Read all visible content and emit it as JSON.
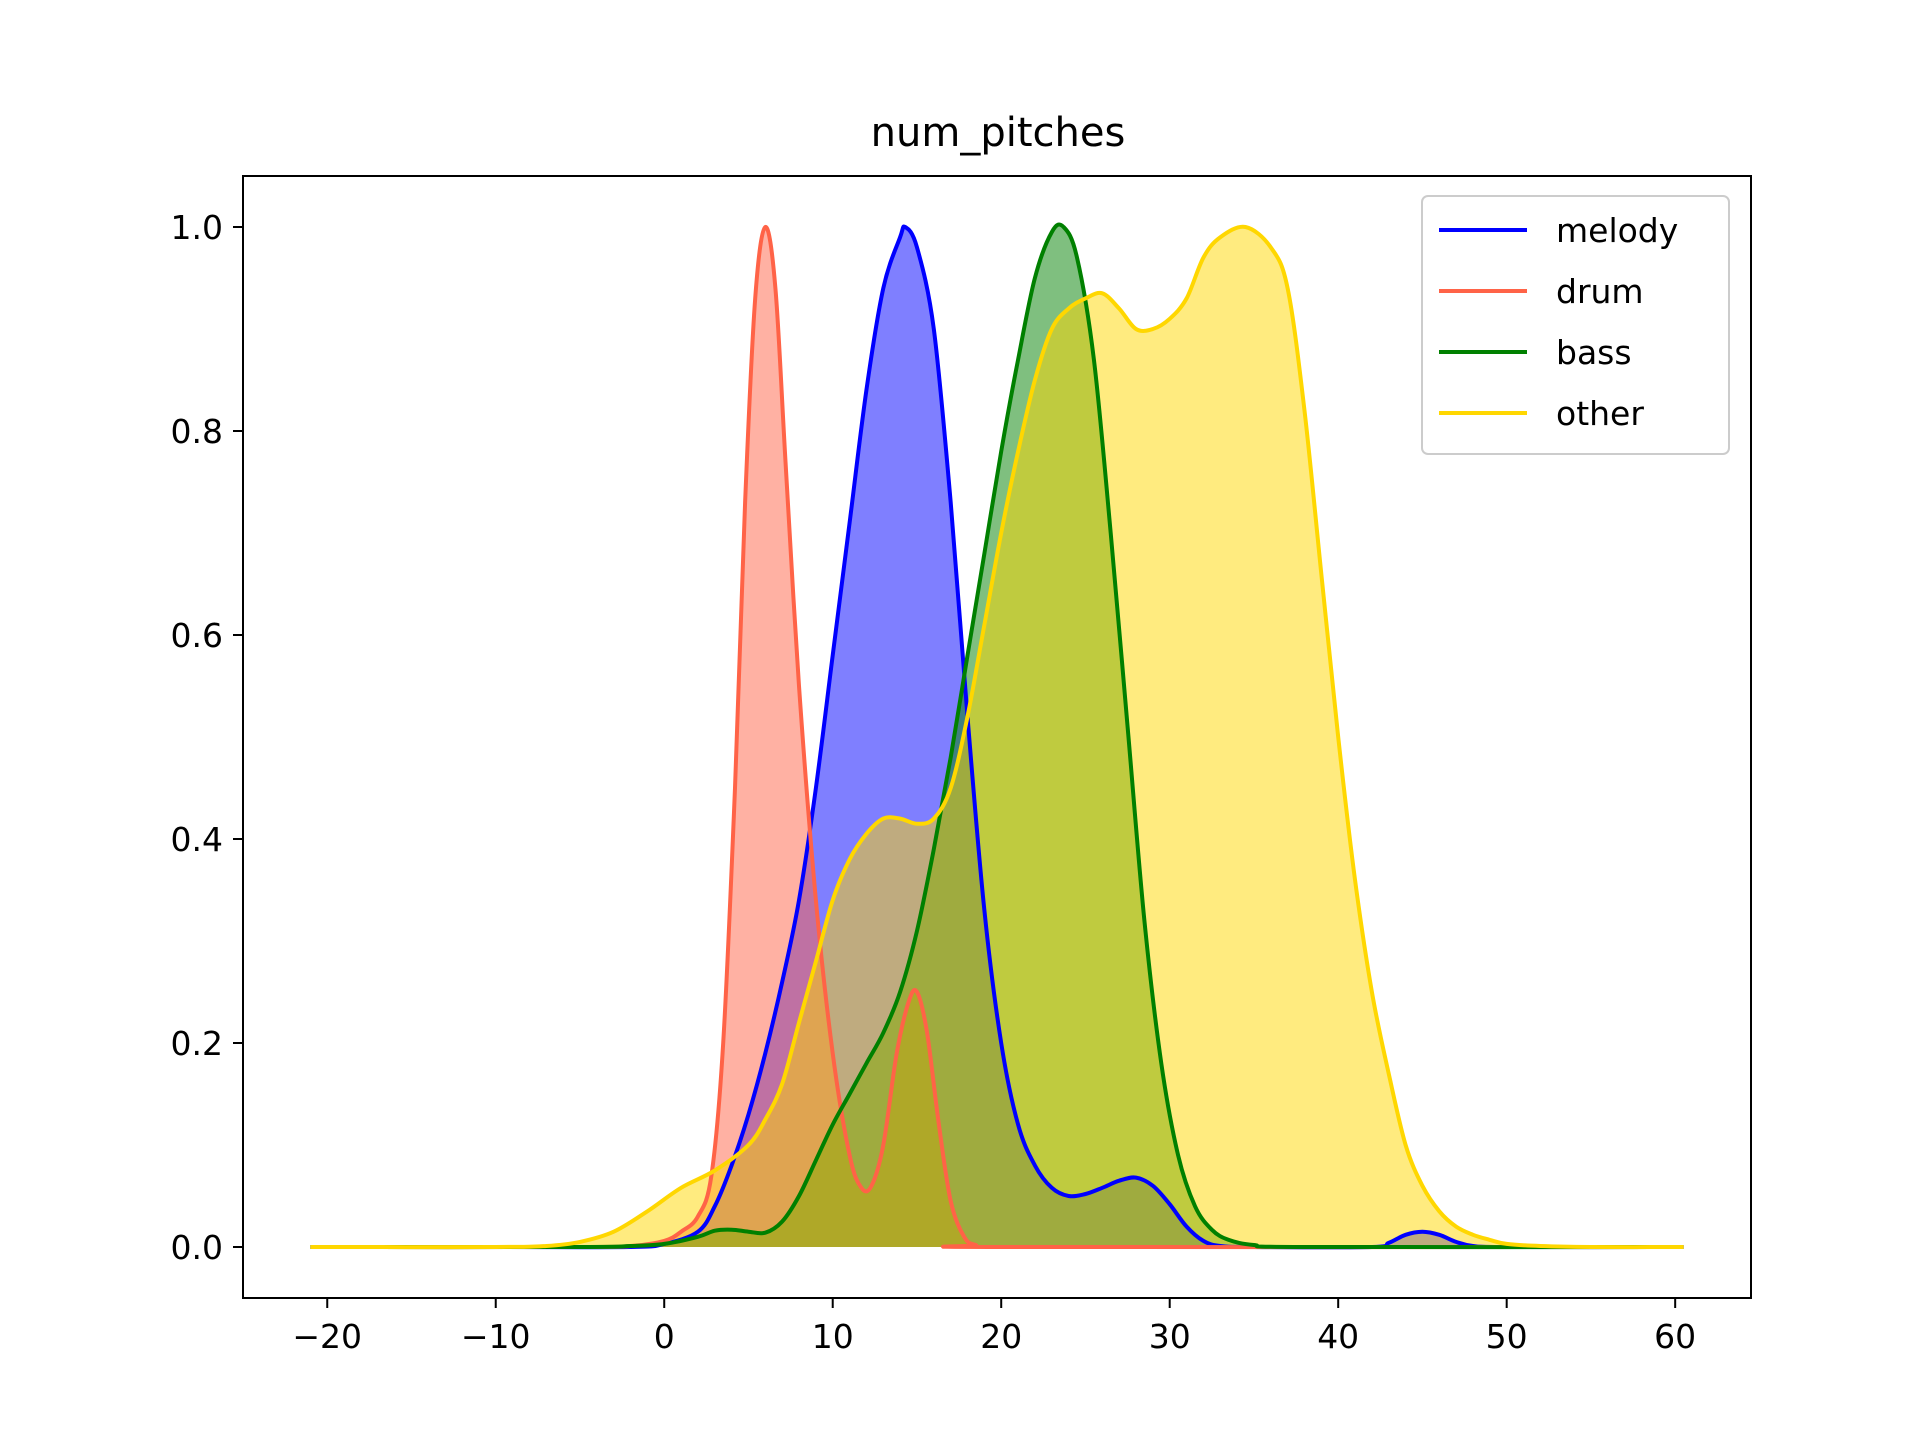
{
  "chart_data": {
    "type": "area",
    "title": "num_pitches",
    "xlabel": "",
    "ylabel": "",
    "xlim": [
      -25,
      64.5
    ],
    "ylim": [
      -0.05,
      1.05
    ],
    "xticks": [
      -20,
      -10,
      0,
      10,
      20,
      30,
      40,
      50,
      60
    ],
    "xtick_labels": [
      "−20",
      "−10",
      "0",
      "10",
      "20",
      "30",
      "40",
      "50",
      "60"
    ],
    "yticks": [
      0.0,
      0.2,
      0.4,
      0.6,
      0.8,
      1.0
    ],
    "ytick_labels": [
      "0.0",
      "0.2",
      "0.4",
      "0.6",
      "0.8",
      "1.0"
    ],
    "grid": false,
    "legend_position": "top-right",
    "series": [
      {
        "name": "melody",
        "color": "#0000ff",
        "fill_opacity": 0.5,
        "points": [
          [
            -21,
            0
          ],
          [
            -10,
            0
          ],
          [
            -2,
            0
          ],
          [
            0,
            0.003
          ],
          [
            2,
            0.015
          ],
          [
            3,
            0.04
          ],
          [
            4,
            0.08
          ],
          [
            5,
            0.13
          ],
          [
            6,
            0.19
          ],
          [
            7,
            0.26
          ],
          [
            8,
            0.34
          ],
          [
            9,
            0.45
          ],
          [
            10,
            0.58
          ],
          [
            11,
            0.71
          ],
          [
            12,
            0.84
          ],
          [
            13,
            0.94
          ],
          [
            14,
            0.99
          ],
          [
            14.3,
            1.0
          ],
          [
            15,
            0.98
          ],
          [
            16,
            0.9
          ],
          [
            17,
            0.73
          ],
          [
            18,
            0.52
          ],
          [
            19,
            0.33
          ],
          [
            20,
            0.2
          ],
          [
            21,
            0.12
          ],
          [
            22,
            0.08
          ],
          [
            23,
            0.058
          ],
          [
            24,
            0.05
          ],
          [
            25,
            0.052
          ],
          [
            26,
            0.058
          ],
          [
            27,
            0.065
          ],
          [
            28,
            0.068
          ],
          [
            29,
            0.06
          ],
          [
            30,
            0.042
          ],
          [
            31,
            0.02
          ],
          [
            32,
            0.006
          ],
          [
            33,
            0.001
          ],
          [
            35,
            0
          ],
          [
            42,
            0
          ],
          [
            43,
            0.004
          ],
          [
            44,
            0.012
          ],
          [
            45,
            0.015
          ],
          [
            46,
            0.012
          ],
          [
            47,
            0.005
          ],
          [
            48,
            0.001
          ],
          [
            50,
            0
          ],
          [
            60.5,
            0
          ]
        ]
      },
      {
        "name": "drum",
        "color": "#ff6347",
        "fill_opacity": 0.5,
        "points": [
          [
            -21,
            0
          ],
          [
            -5,
            0
          ],
          [
            -2,
            0.001
          ],
          [
            0,
            0.006
          ],
          [
            1,
            0.015
          ],
          [
            2,
            0.03
          ],
          [
            2.8,
            0.07
          ],
          [
            3.5,
            0.2
          ],
          [
            4.2,
            0.45
          ],
          [
            4.8,
            0.73
          ],
          [
            5.4,
            0.93
          ],
          [
            6.0,
            1.0
          ],
          [
            6.6,
            0.94
          ],
          [
            7.2,
            0.77
          ],
          [
            8,
            0.55
          ],
          [
            9,
            0.34
          ],
          [
            10,
            0.19
          ],
          [
            11,
            0.09
          ],
          [
            11.7,
            0.058
          ],
          [
            12.3,
            0.06
          ],
          [
            13,
            0.1
          ],
          [
            13.8,
            0.19
          ],
          [
            14.5,
            0.24
          ],
          [
            15,
            0.25
          ],
          [
            15.6,
            0.21
          ],
          [
            16.3,
            0.12
          ],
          [
            17,
            0.045
          ],
          [
            17.8,
            0.01
          ],
          [
            18.5,
            0.002
          ],
          [
            20,
            0
          ],
          [
            60.5,
            0
          ]
        ]
      },
      {
        "name": "bass",
        "color": "#008000",
        "fill_opacity": 0.5,
        "points": [
          [
            -21,
            0
          ],
          [
            -5,
            0
          ],
          [
            -2,
            0.001
          ],
          [
            0,
            0.003
          ],
          [
            2,
            0.01
          ],
          [
            3,
            0.016
          ],
          [
            4,
            0.017
          ],
          [
            5,
            0.015
          ],
          [
            6,
            0.014
          ],
          [
            7,
            0.025
          ],
          [
            8,
            0.05
          ],
          [
            9,
            0.085
          ],
          [
            10,
            0.12
          ],
          [
            11,
            0.15
          ],
          [
            12,
            0.18
          ],
          [
            13,
            0.21
          ],
          [
            14,
            0.25
          ],
          [
            15,
            0.31
          ],
          [
            16,
            0.39
          ],
          [
            17,
            0.48
          ],
          [
            18,
            0.58
          ],
          [
            19,
            0.68
          ],
          [
            20,
            0.78
          ],
          [
            21,
            0.87
          ],
          [
            22,
            0.95
          ],
          [
            23,
            0.995
          ],
          [
            23.7,
            1.0
          ],
          [
            24.5,
            0.97
          ],
          [
            25.5,
            0.87
          ],
          [
            26.5,
            0.7
          ],
          [
            27.5,
            0.51
          ],
          [
            28.5,
            0.32
          ],
          [
            29.5,
            0.18
          ],
          [
            30.5,
            0.09
          ],
          [
            31.5,
            0.04
          ],
          [
            32.5,
            0.017
          ],
          [
            33.5,
            0.007
          ],
          [
            35,
            0.002
          ],
          [
            38,
            0
          ],
          [
            60.5,
            0
          ]
        ]
      },
      {
        "name": "other",
        "color": "#ffd700",
        "fill_opacity": 0.5,
        "points": [
          [
            -21,
            0
          ],
          [
            -10,
            0
          ],
          [
            -7,
            0.001
          ],
          [
            -5,
            0.005
          ],
          [
            -3,
            0.015
          ],
          [
            -1,
            0.035
          ],
          [
            1,
            0.058
          ],
          [
            3,
            0.075
          ],
          [
            5,
            0.1
          ],
          [
            6,
            0.125
          ],
          [
            7,
            0.16
          ],
          [
            8,
            0.22
          ],
          [
            9,
            0.28
          ],
          [
            10,
            0.34
          ],
          [
            11,
            0.38
          ],
          [
            12,
            0.405
          ],
          [
            13,
            0.42
          ],
          [
            14,
            0.42
          ],
          [
            15,
            0.415
          ],
          [
            16,
            0.42
          ],
          [
            17,
            0.45
          ],
          [
            18,
            0.52
          ],
          [
            19,
            0.61
          ],
          [
            20,
            0.7
          ],
          [
            21,
            0.78
          ],
          [
            22,
            0.85
          ],
          [
            23,
            0.9
          ],
          [
            24,
            0.92
          ],
          [
            25,
            0.93
          ],
          [
            26,
            0.935
          ],
          [
            27,
            0.92
          ],
          [
            28,
            0.9
          ],
          [
            29,
            0.9
          ],
          [
            30,
            0.91
          ],
          [
            31,
            0.93
          ],
          [
            32,
            0.97
          ],
          [
            33,
            0.99
          ],
          [
            34.5,
            1.0
          ],
          [
            36,
            0.98
          ],
          [
            37,
            0.94
          ],
          [
            38,
            0.82
          ],
          [
            39,
            0.66
          ],
          [
            40,
            0.5
          ],
          [
            41,
            0.36
          ],
          [
            42,
            0.25
          ],
          [
            43,
            0.17
          ],
          [
            44,
            0.1
          ],
          [
            45,
            0.06
          ],
          [
            46,
            0.035
          ],
          [
            47,
            0.02
          ],
          [
            48,
            0.012
          ],
          [
            49,
            0.007
          ],
          [
            50,
            0.003
          ],
          [
            52,
            0.001
          ],
          [
            55,
            0
          ],
          [
            60.5,
            0
          ]
        ]
      }
    ]
  }
}
